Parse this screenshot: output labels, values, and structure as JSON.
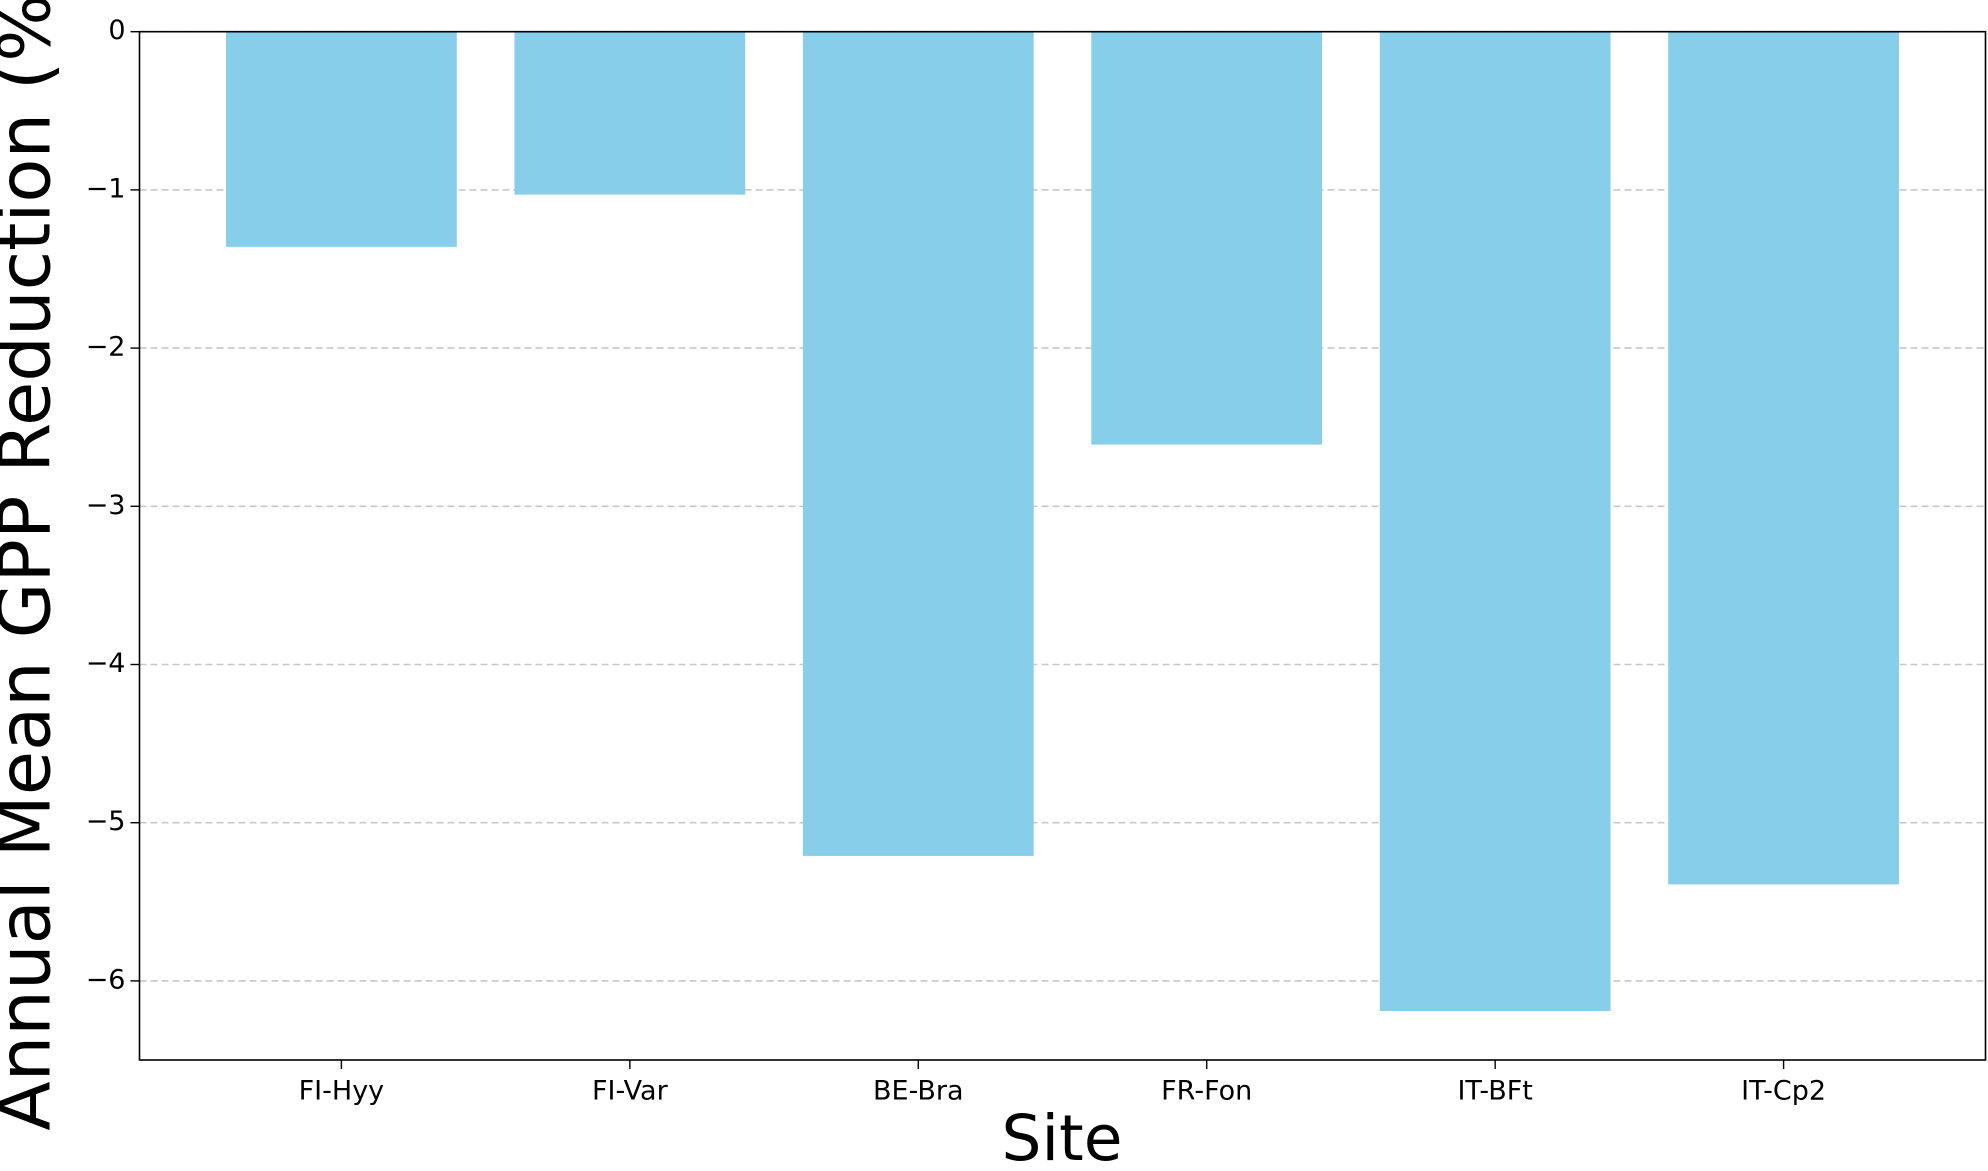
{
  "chart_data": {
    "type": "bar",
    "x_label": "Site",
    "y_label": "Annual Mean GPP Reduction (%)",
    "categories": [
      "FI-Hyy",
      "FI-Var",
      "BE-Bra",
      "FR-Fon",
      "IT-BFt",
      "IT-Cp2"
    ],
    "values": [
      -1.36,
      -1.03,
      -5.21,
      -2.61,
      -6.19,
      -5.39
    ],
    "color": "#87ceeb",
    "ylim": [
      -6.5,
      0
    ],
    "yticks": [
      {
        "value": -6,
        "label": "−6"
      },
      {
        "value": -5,
        "label": "−5"
      },
      {
        "value": -4,
        "label": "−4"
      },
      {
        "value": -3,
        "label": "−3"
      },
      {
        "value": -2,
        "label": "−2"
      },
      {
        "value": -1,
        "label": "−1"
      },
      0
    ],
    "grid": true
  }
}
